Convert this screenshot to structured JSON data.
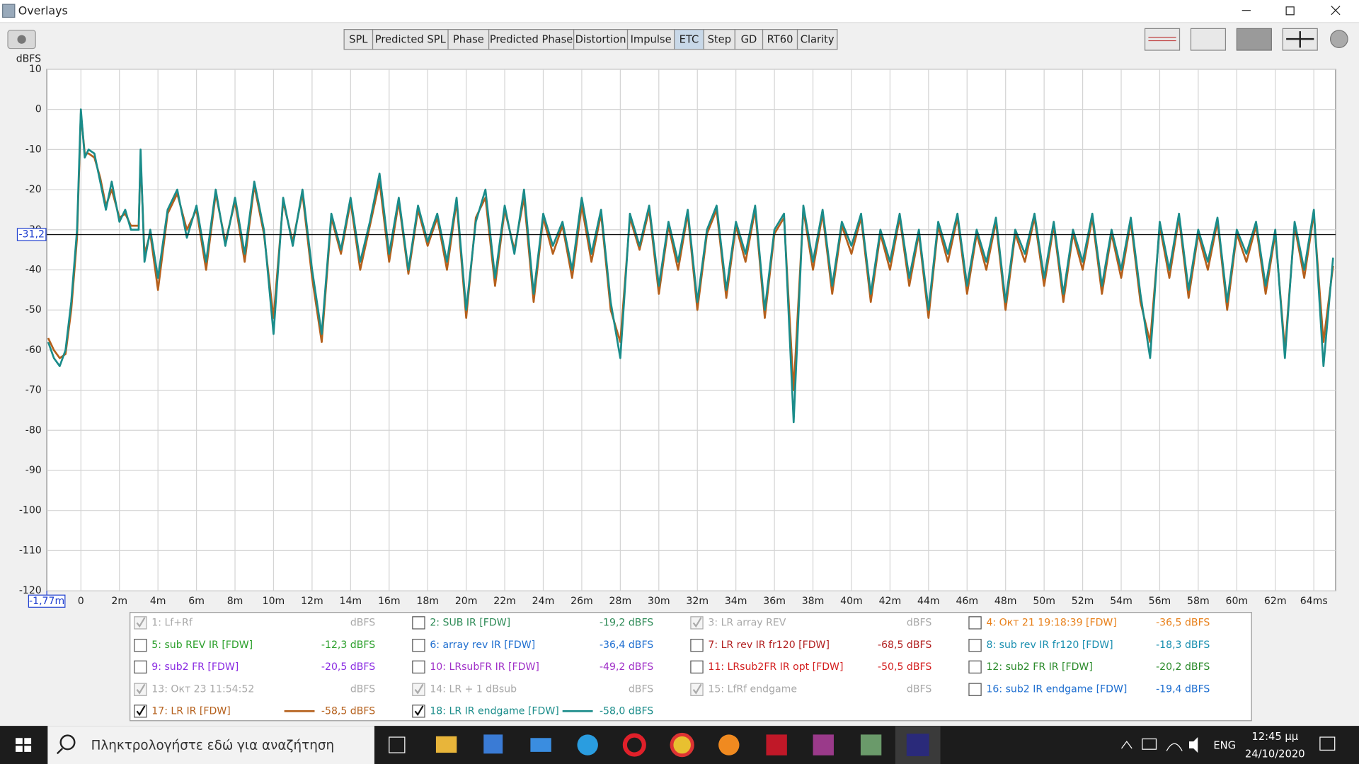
{
  "window": {
    "title": "Overlays"
  },
  "toolbar": {
    "buttons": [
      {
        "label": "SPL",
        "active": false
      },
      {
        "label": "Predicted SPL",
        "active": false
      },
      {
        "label": "Phase",
        "active": false
      },
      {
        "label": "Predicted Phase",
        "active": false
      },
      {
        "label": "Distortion",
        "active": false
      },
      {
        "label": "Impulse",
        "active": false
      },
      {
        "label": "ETC",
        "active": true
      },
      {
        "label": "Step",
        "active": false
      },
      {
        "label": "GD",
        "active": false
      },
      {
        "label": "RT60",
        "active": false
      },
      {
        "label": "Clarity",
        "active": false
      }
    ]
  },
  "overlays": [
    {
      "label": "1: Lf+Rf",
      "value": "dBFS",
      "color": "#a8a8a8",
      "checked": true,
      "enabled": false
    },
    {
      "label": "2: SUB IR [FDW]",
      "value": "-19,2 dBFS",
      "color": "#2e8b57",
      "checked": false,
      "enabled": true
    },
    {
      "label": "3: LR array REV",
      "value": "dBFS",
      "color": "#a8a8a8",
      "checked": true,
      "enabled": false
    },
    {
      "label": "4: Окт 21 19:18:39 [FDW]",
      "value": "-36,5 dBFS",
      "color": "#e8801a",
      "checked": false,
      "enabled": true
    },
    {
      "label": "5: sub REV IR [FDW]",
      "value": "-12,3 dBFS",
      "color": "#2ca02c",
      "checked": false,
      "enabled": true
    },
    {
      "label": "6: array rev IR [FDW]",
      "value": "-36,4 dBFS",
      "color": "#1f6fd0",
      "checked": false,
      "enabled": true
    },
    {
      "label": "7: LR rev IR fr120 [FDW]",
      "value": "-68,5 dBFS",
      "color": "#b22222",
      "checked": false,
      "enabled": true
    },
    {
      "label": "8: sub rev IR fr120 [FDW]",
      "value": "-18,3 dBFS",
      "color": "#1a8fb0",
      "checked": false,
      "enabled": true
    },
    {
      "label": "9: sub2 FR [FDW]",
      "value": "-20,5 dBFS",
      "color": "#8a2be2",
      "checked": false,
      "enabled": true
    },
    {
      "label": "10: LRsubFR IR [FDW]",
      "value": "-49,2 dBFS",
      "color": "#a030c8",
      "checked": false,
      "enabled": true
    },
    {
      "label": "11: LRsub2FR IR opt [FDW]",
      "value": "-50,5 dBFS",
      "color": "#d42020",
      "checked": false,
      "enabled": true
    },
    {
      "label": "12: sub2 FR IR [FDW]",
      "value": "-20,2 dBFS",
      "color": "#2a8a2a",
      "checked": false,
      "enabled": true
    },
    {
      "label": "13: Окт 23 11:54:52",
      "value": "dBFS",
      "color": "#a8a8a8",
      "checked": true,
      "enabled": false
    },
    {
      "label": "14: LR + 1 dBsub",
      "value": "dBFS",
      "color": "#a8a8a8",
      "checked": true,
      "enabled": false
    },
    {
      "label": "15: LfRf endgame",
      "value": "dBFS",
      "color": "#a8a8a8",
      "checked": true,
      "enabled": false
    },
    {
      "label": "16: sub2 IR endgame [FDW]",
      "value": "-19,4 dBFS",
      "color": "#1f6fd0",
      "checked": false,
      "enabled": true
    }
  ],
  "chart_data": {
    "type": "line",
    "y_label": "dBFS",
    "xlim": [
      -1.77,
      65.13
    ],
    "ylim": [
      -120,
      10
    ],
    "grid": true,
    "yticks": [
      10,
      0,
      -10,
      -20,
      -30,
      -40,
      -50,
      -60,
      -70,
      -80,
      -90,
      -100,
      -110,
      -120
    ],
    "xticks": [
      0,
      {
        "value": 2,
        "label": "2m"
      },
      {
        "value": 4,
        "label": "4m"
      },
      {
        "value": 6,
        "label": "6m"
      },
      {
        "value": 8,
        "label": "8m"
      },
      {
        "value": 10,
        "label": "10m"
      },
      {
        "value": 12,
        "label": "12m"
      },
      {
        "value": 14,
        "label": "14m"
      },
      {
        "value": 16,
        "label": "16m"
      },
      {
        "value": 18,
        "label": "18m"
      },
      {
        "value": 20,
        "label": "20m"
      },
      {
        "value": 22,
        "label": "22m"
      },
      {
        "value": 24,
        "label": "24m"
      },
      {
        "value": 26,
        "label": "26m"
      },
      {
        "value": 28,
        "label": "28m"
      },
      {
        "value": 30,
        "label": "30m"
      },
      {
        "value": 32,
        "label": "32m"
      },
      {
        "value": 34,
        "label": "34m"
      },
      {
        "value": 36,
        "label": "36m"
      },
      {
        "value": 38,
        "label": "38m"
      },
      {
        "value": 40,
        "label": "40m"
      },
      {
        "value": 42,
        "label": "42m"
      },
      {
        "value": 44,
        "label": "44m"
      },
      {
        "value": 46,
        "label": "46m"
      },
      {
        "value": 48,
        "label": "48m"
      },
      {
        "value": 50,
        "label": "50m"
      },
      {
        "value": 52,
        "label": "52m"
      },
      {
        "value": 54,
        "label": "54m"
      },
      {
        "value": 56,
        "label": "56m"
      },
      {
        "value": 58,
        "label": "58m"
      },
      {
        "value": 60,
        "label": "60m"
      },
      {
        "value": 62,
        "label": "62m"
      },
      {
        "value": 64,
        "label": "64ms"
      }
    ],
    "x_cursor": {
      "value": -1.77,
      "label": "-1,77m"
    },
    "y_cursor": {
      "value": -31.2,
      "label": "-31,2"
    },
    "x": [
      -1.7,
      -1.4,
      -1.1,
      -0.8,
      -0.5,
      -0.2,
      0,
      0.2,
      0.4,
      0.7,
      1,
      1.3,
      1.6,
      2,
      2.3,
      2.6,
      3,
      3.1,
      3.3,
      3.6,
      4,
      4.5,
      5,
      5.5,
      6,
      6.5,
      7,
      7.5,
      8,
      8.5,
      9,
      9.5,
      10,
      10.5,
      11,
      11.5,
      12,
      12.5,
      13,
      13.5,
      14,
      14.5,
      15,
      15.5,
      16,
      16.5,
      17,
      17.5,
      18,
      18.5,
      19,
      19.5,
      20,
      20.5,
      21,
      21.5,
      22,
      22.5,
      23,
      23.5,
      24,
      24.5,
      25,
      25.5,
      26,
      26.5,
      27,
      27.5,
      28,
      28.5,
      29,
      29.5,
      30,
      30.5,
      31,
      31.5,
      32,
      32.5,
      33,
      33.5,
      34,
      34.5,
      35,
      35.5,
      36,
      36.5,
      37,
      37.5,
      38,
      38.5,
      39,
      39.5,
      40,
      40.5,
      41,
      41.5,
      42,
      42.5,
      43,
      43.5,
      44,
      44.5,
      45,
      45.5,
      46,
      46.5,
      47,
      47.5,
      48,
      48.5,
      49,
      49.5,
      50,
      50.5,
      51,
      51.5,
      52,
      52.5,
      53,
      53.5,
      54,
      54.5,
      55,
      55.5,
      56,
      56.5,
      57,
      57.5,
      58,
      58.5,
      59,
      59.5,
      60,
      60.5,
      61,
      61.5,
      62,
      62.5,
      63,
      63.5,
      64,
      64.5,
      65
    ],
    "series": [
      {
        "name": "17: LR IR [FDW]",
        "color": "#b5601c",
        "checked": true,
        "readout": "-58,5 dBFS",
        "values": [
          -57,
          -60,
          -62,
          -61,
          -50,
          -32,
          -1,
          -11,
          -11,
          -12,
          -17,
          -24,
          -20,
          -27,
          -26,
          -29,
          -29,
          -12,
          -36,
          -31,
          -45,
          -26,
          -21,
          -30,
          -25,
          -40,
          -21,
          -33,
          -23,
          -38,
          -19,
          -31,
          -52,
          -23,
          -33,
          -21,
          -42,
          -58,
          -27,
          -36,
          -23,
          -40,
          -29,
          -18,
          -38,
          -23,
          -41,
          -25,
          -34,
          -27,
          -40,
          -23,
          -52,
          -27,
          -22,
          -44,
          -25,
          -35,
          -22,
          -48,
          -27,
          -36,
          -29,
          -42,
          -24,
          -38,
          -26,
          -50,
          -58,
          -27,
          -35,
          -25,
          -46,
          -29,
          -40,
          -26,
          -50,
          -31,
          -25,
          -47,
          -29,
          -38,
          -25,
          -52,
          -31,
          -27,
          -70,
          -25,
          -40,
          -26,
          -46,
          -29,
          -36,
          -27,
          -48,
          -31,
          -40,
          -27,
          -44,
          -31,
          -52,
          -29,
          -38,
          -27,
          -46,
          -31,
          -40,
          -28,
          -50,
          -31,
          -38,
          -27,
          -44,
          -29,
          -48,
          -31,
          -40,
          -27,
          -46,
          -31,
          -42,
          -28,
          -48,
          -58,
          -29,
          -42,
          -27,
          -47,
          -31,
          -40,
          -28,
          -50,
          -31,
          -38,
          -29,
          -46,
          -31,
          -60,
          -29,
          -42,
          -26,
          -58,
          -39
        ]
      },
      {
        "name": "18: LR IR endgame [FDW]",
        "color": "#1a8c8a",
        "checked": true,
        "readout": "-58,0 dBFS",
        "values": [
          -58,
          -62,
          -64,
          -60,
          -48,
          -30,
          0,
          -12,
          -10,
          -11,
          -18,
          -25,
          -18,
          -28,
          -25,
          -30,
          -30,
          -10,
          -38,
          -30,
          -42,
          -25,
          -20,
          -32,
          -24,
          -38,
          -20,
          -34,
          -22,
          -36,
          -18,
          -30,
          -56,
          -22,
          -34,
          -20,
          -40,
          -56,
          -26,
          -35,
          -22,
          -38,
          -28,
          -16,
          -36,
          -22,
          -40,
          -24,
          -33,
          -26,
          -38,
          -22,
          -50,
          -28,
          -20,
          -42,
          -24,
          -36,
          -20,
          -46,
          -26,
          -34,
          -28,
          -40,
          -22,
          -36,
          -25,
          -48,
          -62,
          -26,
          -34,
          -24,
          -44,
          -28,
          -38,
          -25,
          -48,
          -30,
          -24,
          -45,
          -28,
          -36,
          -24,
          -50,
          -30,
          -26,
          -78,
          -24,
          -38,
          -25,
          -44,
          -28,
          -34,
          -26,
          -46,
          -30,
          -38,
          -26,
          -42,
          -30,
          -50,
          -28,
          -36,
          -26,
          -44,
          -30,
          -38,
          -27,
          -48,
          -30,
          -36,
          -26,
          -42,
          -28,
          -46,
          -30,
          -38,
          -26,
          -44,
          -30,
          -40,
          -27,
          -46,
          -62,
          -28,
          -40,
          -26,
          -45,
          -30,
          -38,
          -27,
          -48,
          -30,
          -36,
          -28,
          -44,
          -30,
          -62,
          -28,
          -40,
          -25,
          -64,
          -37
        ]
      }
    ]
  },
  "taskbar": {
    "search_placeholder": "Πληκτρολογήστε εδώ για αναζήτηση",
    "language": "ENG",
    "time": "12:45 μμ",
    "date": "24/10/2020"
  }
}
